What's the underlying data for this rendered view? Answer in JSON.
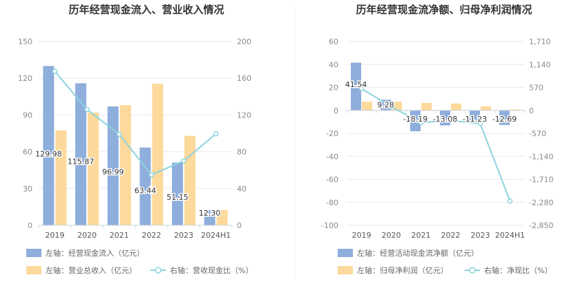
{
  "chart_data": [
    {
      "type": "bar",
      "title": "历年经营现金流入、营业收入情况",
      "categories": [
        "2019",
        "2020",
        "2021",
        "2022",
        "2023",
        "2024H1"
      ],
      "left_axis": {
        "ylim": [
          0,
          150
        ],
        "ticks": [
          "0",
          "30",
          "60",
          "90",
          "120",
          "150"
        ]
      },
      "right_axis": {
        "ylim": [
          0,
          200
        ],
        "ticks": [
          "0",
          "40",
          "80",
          "120",
          "160",
          "200"
        ]
      },
      "series": [
        {
          "name": "左轴：经营现金流入（亿元）",
          "axis": "left",
          "kind": "bar",
          "color": "#8eaedc",
          "values": [
            129.98,
            115.87,
            96.99,
            63.44,
            51.15,
            12.3
          ],
          "labels": [
            "129.98",
            "115.87",
            "96.99",
            "63.44",
            "51.15",
            "12.30"
          ]
        },
        {
          "name": "左轴：营业总收入（亿元）",
          "axis": "left",
          "kind": "bar",
          "color": "#fdd99b",
          "values": [
            77.5,
            92,
            98,
            115.5,
            73,
            12.5
          ]
        },
        {
          "name": "右轴：营收现金比（%）",
          "axis": "right",
          "kind": "line",
          "color": "#8dd3dc",
          "values": [
            167.5,
            126,
            99,
            55,
            70,
            99.5
          ]
        }
      ],
      "legend_placement": "bottom-left"
    },
    {
      "type": "bar",
      "title": "历年经营现金流净额、归母净利润情况",
      "categories": [
        "2019",
        "2020",
        "2021",
        "2022",
        "2023",
        "2024H1"
      ],
      "left_axis": {
        "ylim": [
          -100,
          60
        ],
        "ticks": [
          "-100",
          "-80",
          "-60",
          "-40",
          "-20",
          "0",
          "20",
          "40",
          "60"
        ]
      },
      "right_axis": {
        "ylim": [
          -2850,
          1710
        ],
        "ticks": [
          "-2,850",
          "-2,280",
          "-1,710",
          "-1,140",
          "-570",
          "0",
          "570",
          "1,140",
          "1,710"
        ]
      },
      "series": [
        {
          "name": "左轴：经营活动现金流净额（亿元）",
          "axis": "left",
          "kind": "bar",
          "color": "#8eaedc",
          "values": [
            41.54,
            9.28,
            -18.19,
            -13.08,
            -11.23,
            -12.69
          ],
          "labels": [
            "41.54",
            "9.28",
            "-18.19",
            "-13.08",
            "-11.23",
            "-12.69"
          ]
        },
        {
          "name": "左轴：归母净利润（亿元）",
          "axis": "left",
          "kind": "bar",
          "color": "#fdd99b",
          "values": [
            7.5,
            7.5,
            6.5,
            6,
            3.5,
            0.8
          ]
        },
        {
          "name": "右轴：净现比（%）",
          "axis": "right",
          "kind": "line",
          "color": "#8dd3dc",
          "values": [
            540,
            90,
            -300,
            -250,
            -330,
            -2250
          ]
        }
      ],
      "legend_placement": "bottom-left"
    }
  ]
}
